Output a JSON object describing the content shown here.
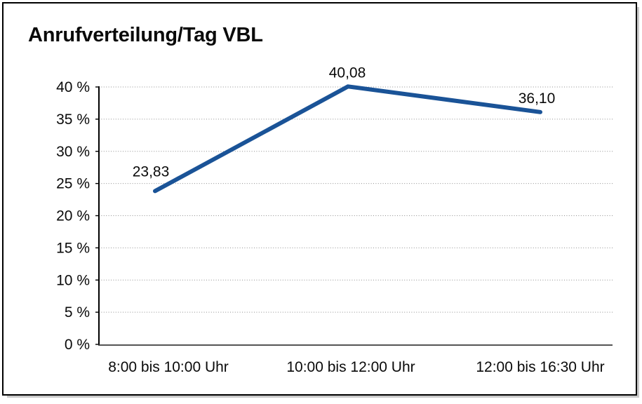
{
  "chart_data": {
    "type": "line",
    "title": "Anrufverteilung/Tag VBL",
    "categories": [
      "8:00 bis 10:00 Uhr",
      "10:00 bis 12:00 Uhr",
      "12:00 bis 16:30 Uhr"
    ],
    "values": [
      23.83,
      40.08,
      36.1
    ],
    "data_labels": [
      "23,83",
      "40,08",
      "36,10"
    ],
    "xlabel": "",
    "ylabel": "",
    "ylim": [
      0,
      40
    ],
    "y_ticks": [
      0,
      5,
      10,
      15,
      20,
      25,
      30,
      35,
      40
    ],
    "y_tick_labels": [
      "0 %",
      "5 %",
      "10 %",
      "15 %",
      "20 %",
      "25 %",
      "30 %",
      "35 %",
      "40 %"
    ],
    "grid": "horizontal dotted",
    "legend": "none",
    "line_color": "#1A5397"
  },
  "colors": {
    "line": "#1A5397",
    "grid": "#8F8F8F",
    "axis": "#000000",
    "x_axis": "#3C3C3C",
    "text": "#0A0A0A",
    "frame_border": "#000000",
    "frame_shadow": "#C9C9C9",
    "background": "#FFFFFF"
  }
}
